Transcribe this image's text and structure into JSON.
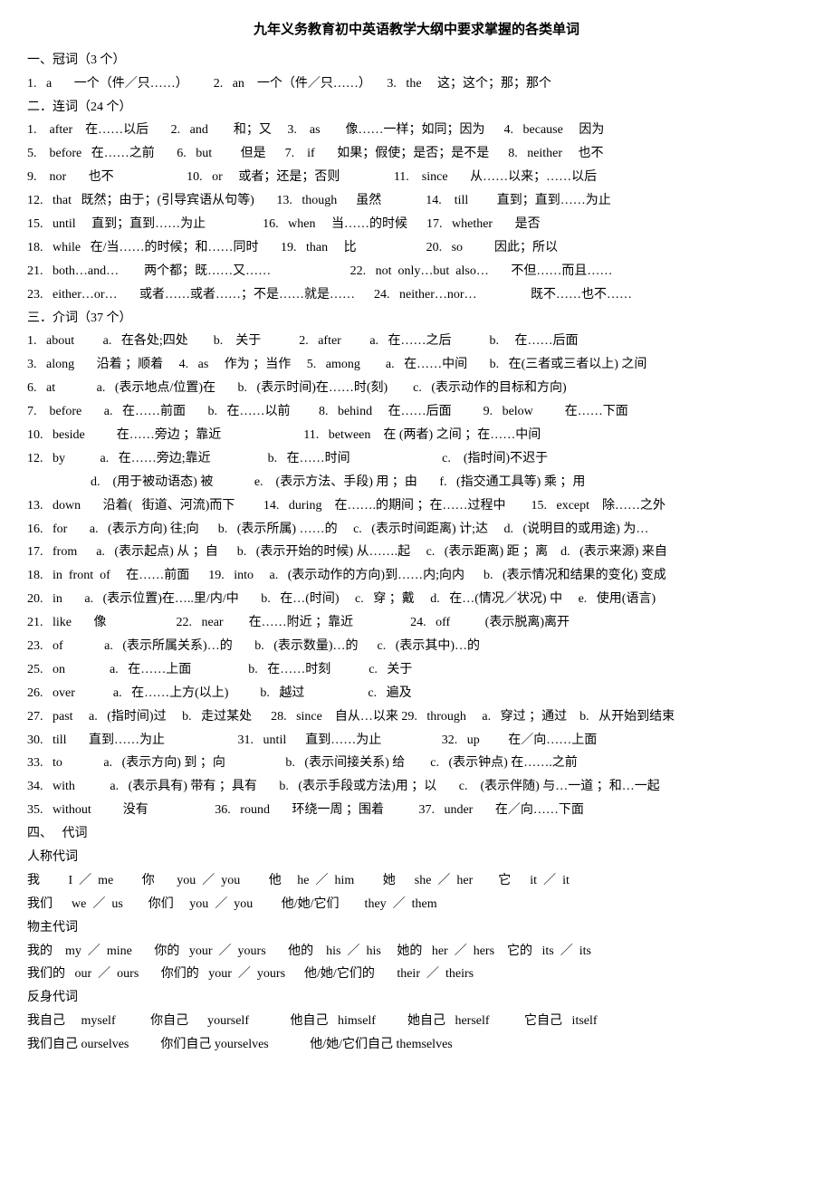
{
  "title": "九年义务教育初中英语教学大纲中要求掌握的各类单词",
  "lines": [
    "一、冠词（3 个）",
    "1.   a       一个（件／只……）        2.   an    一个（件／只……）     3.   the     这；这个；那；那个",
    "二．连词（24 个）",
    "1.    after    在……以后       2.   and        和；又     3.    as        像……一样；如同；因为      4.   because     因为",
    "5.    before   在……之前       6.   but         但是      7.    if       如果；假使；是否；是不是      8.   neither     也不",
    "9.    nor       也不                       10.   or     或者；还是；否则                 11.    since       从……以来；……以后",
    "12.   that   既然；由于；(引导宾语从句等)       13.   though      虽然              14.    till         直到；直到……为止",
    "15.   until     直到；直到……为止                  16.   when     当……的时候      17.   whether       是否",
    "18.   while   在/当……的时候；和……同时       19.   than     比                      20.   so          因此；所以",
    "21.   both…and…        两个都；既……又……                         22.   not  only…but  also…       不但……而且……",
    "23.   either…or…       或者……或者……；不是……就是……      24.   neither…nor…                 既不……也不……",
    "三．介词（37 个）",
    "1.   about         a.   在各处;四处        b.    关于            2.   after         a.   在……之后            b.     在……后面",
    "3.   along       沿着 ；顺着     4.   as     作为 ；当作     5.   among        a.   在……中间       b.   在(三者或三者以上) 之间",
    "6.   at             a.   (表示地点/位置)在       b.   (表示时间)在……时(刻)        c.   (表示动作的目标和方向)",
    "7.    before       a.   在……前面       b.   在……以前         8.   behind     在……后面          9.   below          在……下面",
    "10.   beside          在……旁边 ；靠近                          11.   between    在 (两者) 之间 ；在……中间",
    "12.   by           a.   在……旁边;靠近                  b.   在……时间                             c.    (指时间)不迟于",
    "                    d.    (用于被动语态) 被             e.    (表示方法、手段) 用 ；由       f.   (指交通工具等) 乘 ；用",
    "13.   down       沿着(   街道、河流)而下         14.   during    在…….的期间 ；在……过程中        15.   except    除……之外",
    "16.   for       a.   (表示方向) 往;向      b.   (表示所属) ……的     c.   (表示时间距离) 计;达     d.   (说明目的或用途) 为…",
    "17.   from      a.   (表示起点) 从 ；自      b.   (表示开始的时候) 从…….起     c.   (表示距离) 距 ；离    d.   (表示来源) 来自",
    "18.   in  front  of     在……前面      19.   into     a.   (表示动作的方向)到……内;向内      b.   (表示情况和结果的变化) 变成",
    "20.   in       a.   (表示位置)在…..里/内/中       b.   在…(时间)     c.   穿 ；戴     d.   在…(情况／状况) 中     e.   使用(语言)",
    "21.   like       像                      22.   near        在……附近 ；靠近                  24.   off           (表示脱离)离开",
    "23.   of             a.   (表示所属关系)…的       b.   (表示数量)…的      c.   (表示其中)…的",
    "25.   on              a.   在……上面                  b.   在……时刻            c.   关于",
    "26.   over            a.   在……上方(以上)          b.   越过                    c.   遍及",
    "27.   past     a.   (指时间)过     b.   走过某处      28.   since    自从…以来 29.   through     a.   穿过 ；通过    b.   从开始到结束",
    "30.   till       直到……为止                       31.   until      直到……为止                   32.   up         在／向……上面",
    "33.   to             a.   (表示方向) 到 ；向                   b.   (表示间接关系) 给        c.   (表示钟点) 在…….之前",
    "34.   with           a.   (表示具有) 带有 ；具有       b.   (表示手段或方法)用 ；以       c.    (表示伴随) 与…一道 ；和…一起",
    "35.   without          没有                     36.   round       环绕一周 ；围着           37.   under       在／向……下面",
    "四、   代词",
    "人称代词",
    "我         I  ／  me         你       you  ／  you         他     he  ／  him         她      she  ／  her        它      it  ／  it",
    "我们      we  ／  us        你们     you  ／  you         他/她/它们        they  ／  them",
    "物主代词",
    "我的    my  ／  mine       你的   your  ／  yours       他的    his  ／  his     她的   her  ／  hers    它的   its  ／  its",
    "我们的   our  ／  ours       你们的   your  ／  yours      他/她/它们的       their  ／  theirs",
    "反身代词",
    "我自己     myself           你自己      yourself             他自己   himself          她自己   herself           它自己   itself",
    "我们自己 ourselves          你们自己 yourselves             他/她/它们自己 themselves"
  ]
}
